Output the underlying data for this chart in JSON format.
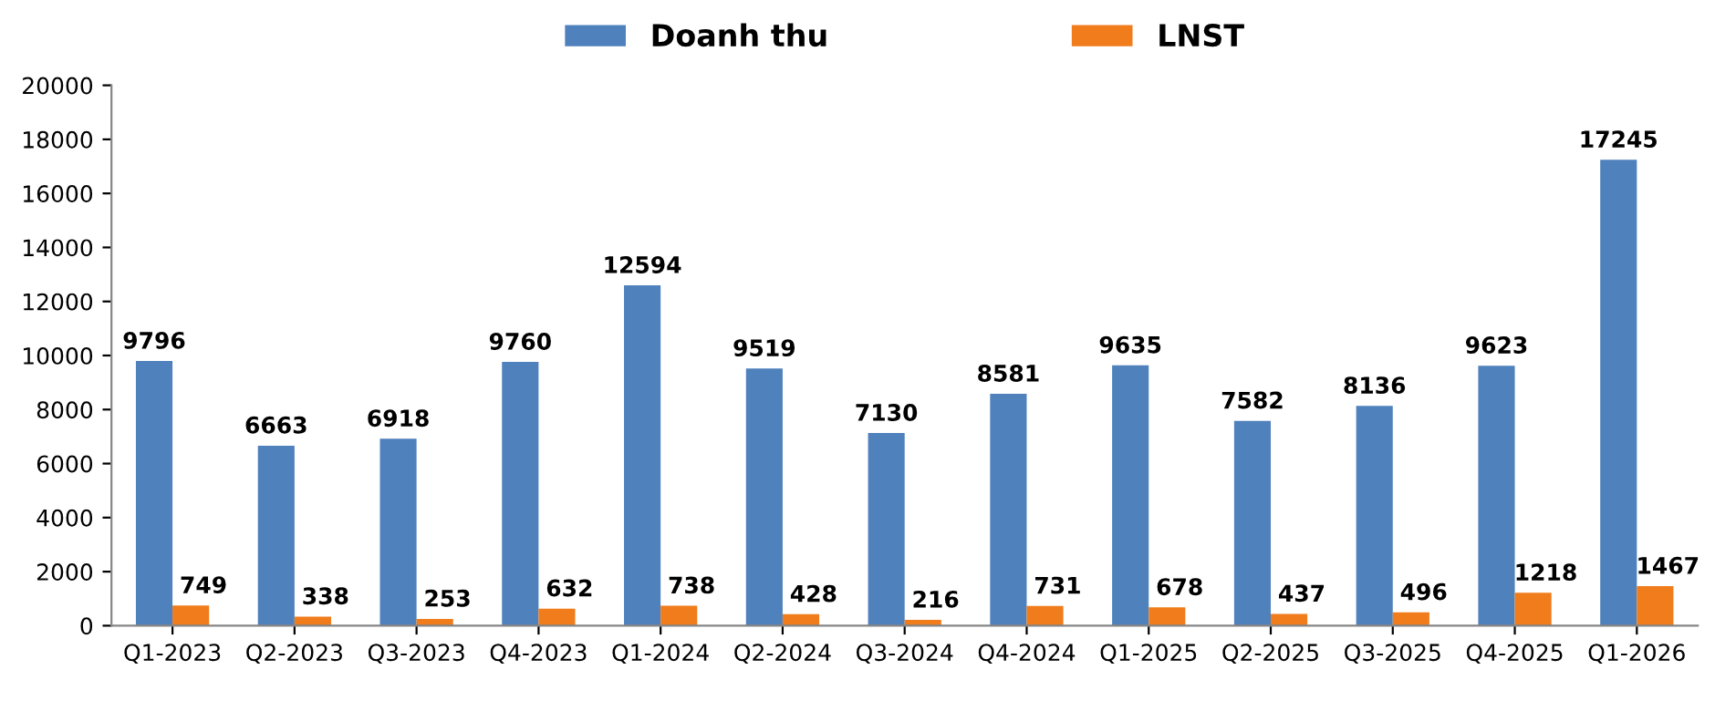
{
  "chart_data": {
    "type": "bar",
    "categories": [
      "Q1-2023",
      "Q2-2023",
      "Q3-2023",
      "Q4-2023",
      "Q1-2024",
      "Q2-2024",
      "Q3-2024",
      "Q4-2024",
      "Q1-2025",
      "Q2-2025",
      "Q3-2025",
      "Q4-2025",
      "Q1-2026"
    ],
    "series": [
      {
        "name": "Doanh thu",
        "color": "#4f81bd",
        "values": [
          9796,
          6663,
          6918,
          9760,
          12594,
          9519,
          7130,
          8581,
          9635,
          7582,
          8136,
          9623,
          17245
        ]
      },
      {
        "name": "LNST",
        "color": "#f07c1c",
        "values": [
          749,
          338,
          253,
          632,
          738,
          428,
          216,
          731,
          678,
          437,
          496,
          1218,
          1467
        ]
      }
    ],
    "ylim": [
      0,
      20000
    ],
    "yticks": [
      0,
      2000,
      4000,
      6000,
      8000,
      10000,
      12000,
      14000,
      16000,
      18000,
      20000
    ],
    "data_labels": true,
    "legend": "top",
    "grid": false
  }
}
